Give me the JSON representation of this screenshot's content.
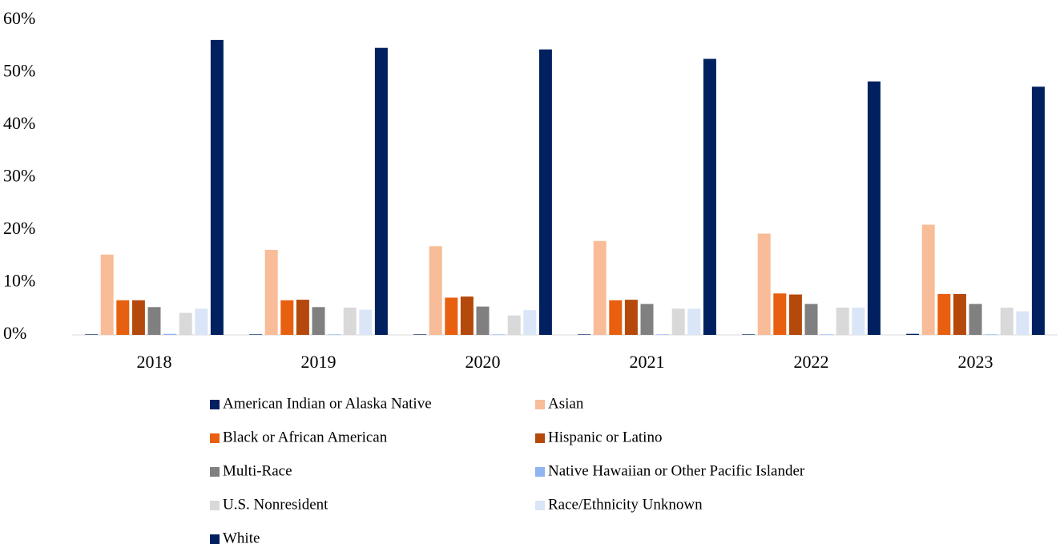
{
  "chart_data": {
    "type": "bar",
    "categories": [
      "2018",
      "2019",
      "2020",
      "2021",
      "2022",
      "2023"
    ],
    "series": [
      {
        "name": "American Indian or Alaska Native",
        "color": "#002060",
        "values": [
          0.1,
          0.1,
          0.1,
          0.1,
          0.1,
          0.2
        ]
      },
      {
        "name": "Asian",
        "color": "#f8bc98",
        "values": [
          15.3,
          16.2,
          16.9,
          17.9,
          19.3,
          21.0
        ]
      },
      {
        "name": "Black or African American",
        "color": "#e8600f",
        "values": [
          6.6,
          6.6,
          7.1,
          6.6,
          7.9,
          7.8
        ]
      },
      {
        "name": "Hispanic or Latino",
        "color": "#b5490b",
        "values": [
          6.6,
          6.7,
          7.3,
          6.7,
          7.7,
          7.8
        ]
      },
      {
        "name": "Multi-Race",
        "color": "#808080",
        "values": [
          5.3,
          5.3,
          5.4,
          5.9,
          5.9,
          5.9
        ]
      },
      {
        "name": "Native Hawaiian or Other Pacific Islander",
        "color": "#8fb4f0",
        "values": [
          0.2,
          0.1,
          0.1,
          0.1,
          0.1,
          0.1
        ]
      },
      {
        "name": "U.S. Nonresident",
        "color": "#d9d9d9",
        "values": [
          4.2,
          5.2,
          3.7,
          5.0,
          5.2,
          5.2
        ]
      },
      {
        "name": "Race/Ethnicity Unknown",
        "color": "#dae5f8",
        "values": [
          5.0,
          4.8,
          4.7,
          5.0,
          5.2,
          4.5
        ]
      },
      {
        "name": "White",
        "color": "#002060",
        "values": [
          56.2,
          54.7,
          54.4,
          52.6,
          48.3,
          47.3
        ]
      }
    ],
    "ylim": [
      0,
      60
    ],
    "yticks": [
      {
        "value": 0,
        "label": "0%"
      },
      {
        "value": 10,
        "label": "10%"
      },
      {
        "value": 20,
        "label": "20%"
      },
      {
        "value": 30,
        "label": "30%"
      },
      {
        "value": 40,
        "label": "40%"
      },
      {
        "value": 50,
        "label": "50%"
      },
      {
        "value": 60,
        "label": "60%"
      }
    ],
    "grid": false
  }
}
